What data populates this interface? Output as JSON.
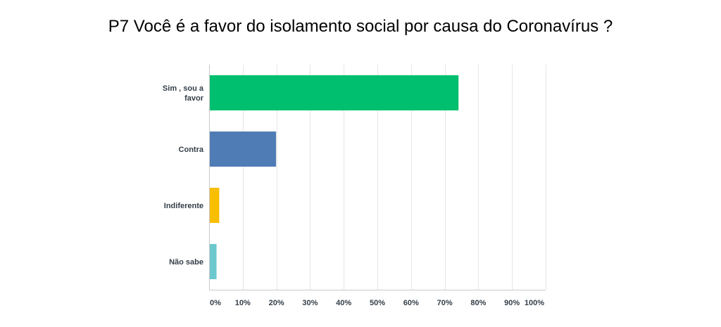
{
  "chart_data": {
    "type": "bar",
    "orientation": "horizontal",
    "title": "P7 Você é a favor do isolamento social por causa do Coronavírus ?",
    "categories": [
      [
        "Sim , sou a",
        "favor"
      ],
      [
        "Contra"
      ],
      [
        "Indiferente"
      ],
      [
        "Não sabe"
      ]
    ],
    "values": [
      74.1,
      19.9,
      3.0,
      2.2
    ],
    "colors": [
      "#00bf6f",
      "#507cb6",
      "#f9be00",
      "#6bc8cd"
    ],
    "xlim": [
      0,
      100
    ],
    "xticks": [
      0,
      10,
      20,
      30,
      40,
      50,
      60,
      70,
      80,
      90,
      100
    ],
    "xtick_labels": [
      "0%",
      "10%",
      "20%",
      "30%",
      "40%",
      "50%",
      "60%",
      "70%",
      "80%",
      "90%",
      "100%"
    ],
    "grid": true,
    "legend": "none"
  }
}
